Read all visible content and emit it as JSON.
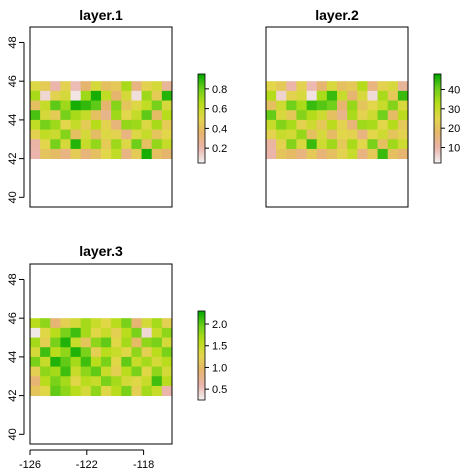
{
  "chart_data": [
    {
      "type": "heatmap",
      "title": "layer.1",
      "xlim": [
        -126,
        -116
      ],
      "ylim": [
        39.5,
        48.8
      ],
      "extent": {
        "xmin": -126,
        "xmax": -116,
        "ymin": 42,
        "ymax": 46
      },
      "y_ticks": [
        40,
        42,
        44,
        46,
        48
      ],
      "x_ticks": [],
      "legend": {
        "min": 0.05,
        "max": 0.95,
        "ticks": [
          0.2,
          0.4,
          0.6,
          0.8
        ],
        "tick_labels": [
          "0.2",
          "0.4",
          "0.6",
          "0.8"
        ]
      },
      "palette": [
        "#F2F2F2",
        "#EBB5AC",
        "#E6B56D",
        "#E2D64A",
        "#B7DD1A",
        "#6DCF1A",
        "#00A600"
      ],
      "values": [
        [
          0.52,
          0.45,
          0.2,
          0.48,
          0.18,
          0.35,
          0.55,
          0.4,
          0.44,
          0.68,
          0.3,
          0.48,
          0.55,
          0.25
        ],
        [
          0.68,
          0.12,
          0.48,
          0.55,
          0.08,
          0.7,
          0.92,
          0.62,
          0.35,
          0.55,
          0.1,
          0.7,
          0.45,
          0.9
        ],
        [
          0.4,
          0.6,
          0.82,
          0.7,
          0.92,
          0.88,
          0.82,
          0.35,
          0.75,
          0.42,
          0.52,
          0.62,
          0.78,
          0.55
        ],
        [
          0.85,
          0.55,
          0.45,
          0.78,
          0.68,
          0.6,
          0.4,
          0.28,
          0.7,
          0.5,
          0.6,
          0.82,
          0.38,
          0.65
        ],
        [
          0.62,
          0.78,
          0.7,
          0.5,
          0.6,
          0.45,
          0.65,
          0.48,
          0.32,
          0.72,
          0.7,
          0.52,
          0.68,
          0.45
        ],
        [
          0.48,
          0.62,
          0.58,
          0.75,
          0.4,
          0.55,
          0.38,
          0.52,
          0.48,
          0.3,
          0.52,
          0.6,
          0.42,
          0.5
        ],
        [
          0.22,
          0.5,
          0.78,
          0.55,
          0.9,
          0.6,
          0.72,
          0.45,
          0.7,
          0.52,
          0.8,
          0.4,
          0.72,
          0.6
        ],
        [
          0.2,
          0.42,
          0.38,
          0.3,
          0.45,
          0.32,
          0.4,
          0.5,
          0.62,
          0.3,
          0.45,
          0.92,
          0.4,
          0.35
        ]
      ]
    },
    {
      "type": "heatmap",
      "title": "layer.2",
      "xlim": [
        -126,
        -116
      ],
      "ylim": [
        39.5,
        48.8
      ],
      "extent": {
        "xmin": -126,
        "xmax": -116,
        "ymin": 42,
        "ymax": 46
      },
      "y_ticks": [],
      "x_ticks": [],
      "legend": {
        "min": 2,
        "max": 48,
        "ticks": [
          10,
          20,
          30,
          40
        ],
        "tick_labels": [
          "10",
          "20",
          "30",
          "40"
        ]
      },
      "palette": [
        "#F2F2F2",
        "#EBB5AC",
        "#E6B56D",
        "#E2D64A",
        "#B7DD1A",
        "#6DCF1A",
        "#00A600"
      ],
      "values": [
        [
          25,
          22,
          10,
          24,
          9,
          17,
          27,
          20,
          22,
          33,
          15,
          24,
          27,
          12
        ],
        [
          33,
          6,
          24,
          27,
          4,
          34,
          44,
          30,
          17,
          27,
          5,
          34,
          22,
          44
        ],
        [
          20,
          29,
          40,
          34,
          44,
          42,
          40,
          17,
          36,
          21,
          25,
          30,
          38,
          27
        ],
        [
          41,
          27,
          22,
          38,
          33,
          29,
          20,
          14,
          34,
          24,
          29,
          40,
          19,
          32
        ],
        [
          30,
          38,
          34,
          24,
          29,
          22,
          32,
          24,
          16,
          35,
          34,
          25,
          33,
          22
        ],
        [
          24,
          30,
          28,
          36,
          20,
          27,
          19,
          25,
          24,
          15,
          25,
          29,
          21,
          24
        ],
        [
          11,
          24,
          38,
          27,
          44,
          29,
          35,
          22,
          34,
          25,
          39,
          20,
          35,
          29
        ],
        [
          10,
          21,
          19,
          15,
          22,
          16,
          20,
          24,
          30,
          15,
          22,
          44,
          20,
          17
        ]
      ]
    },
    {
      "type": "heatmap",
      "title": "layer.3",
      "xlim": [
        -126,
        -116
      ],
      "ylim": [
        39.5,
        48.8
      ],
      "extent": {
        "xmin": -126,
        "xmax": -116,
        "ymin": 42,
        "ymax": 46
      },
      "y_ticks": [
        40,
        42,
        44,
        46,
        48
      ],
      "x_ticks": [
        -126,
        -122,
        -118
      ],
      "legend": {
        "min": 0.25,
        "max": 2.3,
        "ticks": [
          0.5,
          1.0,
          1.5,
          2.0
        ],
        "tick_labels": [
          "0.5",
          "1.0",
          "1.5",
          "2.0"
        ]
      },
      "palette": [
        "#F2F2F2",
        "#EBB5AC",
        "#E6B56D",
        "#E2D64A",
        "#B7DD1A",
        "#6DCF1A",
        "#00A600"
      ],
      "values": [
        [
          1.6,
          1.8,
          0.9,
          1.2,
          1.4,
          1.7,
          1.5,
          1.3,
          1.6,
          1.9,
          0.9,
          1.4,
          1.7,
          1.2
        ],
        [
          0.3,
          1.3,
          1.6,
          1.9,
          2.1,
          1.7,
          1.3,
          1.5,
          1.2,
          1.6,
          1.9,
          0.4,
          1.5,
          1.8
        ],
        [
          1.7,
          1.2,
          1.9,
          2.2,
          1.5,
          1.1,
          1.8,
          2.0,
          1.3,
          1.7,
          1.0,
          1.8,
          1.9,
          1.4
        ],
        [
          1.4,
          2.1,
          1.6,
          1.8,
          2.2,
          1.9,
          1.2,
          1.6,
          1.5,
          1.3,
          1.8,
          1.2,
          1.6,
          1.9
        ],
        [
          1.9,
          1.5,
          2.2,
          2.0,
          1.7,
          2.1,
          1.6,
          1.9,
          1.3,
          2.0,
          1.5,
          1.7,
          1.4,
          1.6
        ],
        [
          1.2,
          1.8,
          1.7,
          2.1,
          1.5,
          1.8,
          2.0,
          1.5,
          1.2,
          1.6,
          1.9,
          1.3,
          1.8,
          1.4
        ],
        [
          0.9,
          1.6,
          1.9,
          1.7,
          1.3,
          1.6,
          1.5,
          1.9,
          1.7,
          1.4,
          1.3,
          1.5,
          2.1,
          1.6
        ],
        [
          1.1,
          1.3,
          2.0,
          1.8,
          1.6,
          1.4,
          1.8,
          1.3,
          1.6,
          1.9,
          1.2,
          1.7,
          1.5,
          0.6
        ]
      ]
    }
  ]
}
